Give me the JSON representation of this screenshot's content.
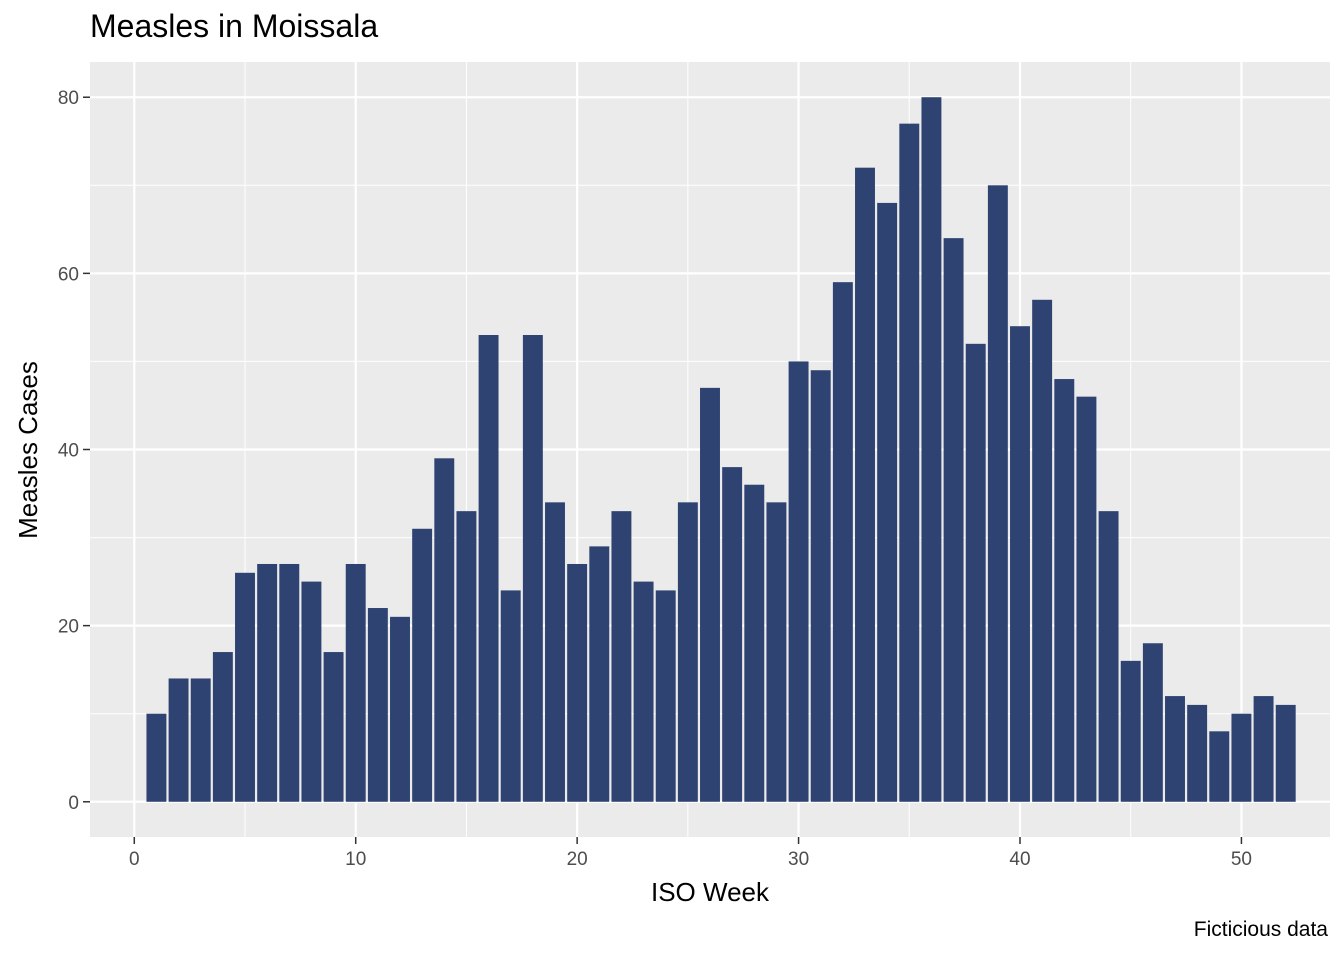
{
  "chart_data": {
    "type": "bar",
    "title": "Measles in Moissala",
    "caption": "Ficticious data",
    "xlabel": "ISO Week",
    "ylabel": "Measles Cases",
    "xlim": [
      -2,
      54
    ],
    "ylim": [
      -4,
      84
    ],
    "xticks": [
      0,
      10,
      20,
      30,
      40,
      50
    ],
    "yticks": [
      0,
      20,
      40,
      60,
      80
    ],
    "bar_color": "#2e4372",
    "panel_color": "#ebebeb",
    "grid": true,
    "x": [
      1,
      2,
      3,
      4,
      5,
      6,
      7,
      8,
      9,
      10,
      11,
      12,
      13,
      14,
      15,
      16,
      17,
      18,
      19,
      20,
      21,
      22,
      23,
      24,
      25,
      26,
      27,
      28,
      29,
      30,
      31,
      32,
      33,
      34,
      35,
      36,
      37,
      38,
      39,
      40,
      41,
      42,
      43,
      44,
      45,
      46,
      47,
      48,
      49,
      50,
      51,
      52
    ],
    "values": [
      10,
      14,
      14,
      17,
      26,
      27,
      27,
      25,
      17,
      27,
      22,
      21,
      31,
      39,
      33,
      53,
      24,
      53,
      34,
      27,
      29,
      33,
      25,
      24,
      34,
      47,
      38,
      36,
      34,
      50,
      49,
      59,
      72,
      68,
      77,
      80,
      64,
      52,
      70,
      54,
      57,
      48,
      46,
      33,
      16,
      18,
      12,
      11,
      8,
      10,
      12,
      11
    ]
  }
}
